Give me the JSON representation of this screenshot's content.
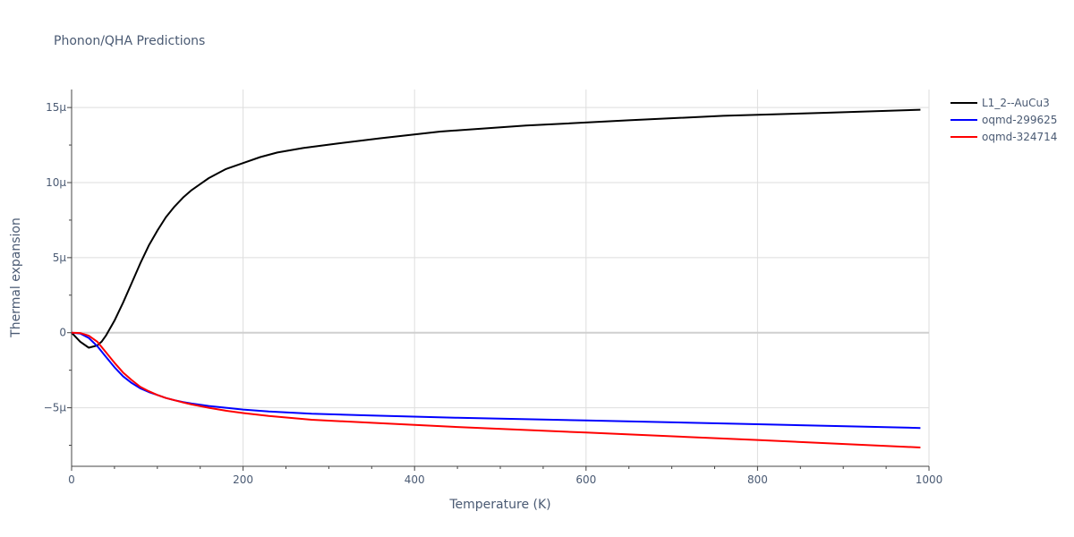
{
  "chart_data": {
    "type": "line",
    "title": "Phonon/QHA Predictions",
    "xlabel": "Temperature (K)",
    "ylabel": "Thermal expansion",
    "xlim": [
      0,
      1000
    ],
    "ylim": [
      -8.9,
      16.2
    ],
    "x_ticks": [
      0,
      200,
      400,
      600,
      800,
      1000
    ],
    "x_tick_labels": [
      "0",
      "200",
      "400",
      "600",
      "800",
      "1000"
    ],
    "y_ticks": [
      -5,
      0,
      5,
      10,
      15
    ],
    "y_tick_labels": [
      "−5µ",
      "0",
      "5µ",
      "10µ",
      "15µ"
    ],
    "grid": true,
    "legend_position": "right",
    "series": [
      {
        "name": "L1_2--AuCu3",
        "color": "#000000",
        "x": [
          0,
          10,
          20,
          30,
          35,
          40,
          50,
          60,
          70,
          80,
          90,
          100,
          110,
          120,
          130,
          140,
          150,
          160,
          170,
          180,
          200,
          220,
          240,
          270,
          310,
          360,
          430,
          530,
          650,
          760,
          880,
          990
        ],
        "y": [
          0,
          -0.6,
          -1.0,
          -0.85,
          -0.6,
          -0.2,
          0.8,
          2.0,
          3.3,
          4.6,
          5.8,
          6.8,
          7.7,
          8.4,
          9.0,
          9.5,
          9.9,
          10.3,
          10.6,
          10.9,
          11.3,
          11.7,
          12.0,
          12.3,
          12.6,
          12.95,
          13.4,
          13.8,
          14.15,
          14.45,
          14.65,
          14.85
        ]
      },
      {
        "name": "oqmd-299625",
        "color": "#0000ff",
        "x": [
          0,
          10,
          20,
          30,
          40,
          50,
          60,
          70,
          80,
          90,
          100,
          110,
          120,
          130,
          140,
          160,
          180,
          200,
          230,
          280,
          350,
          450,
          600,
          800,
          990
        ],
        "y": [
          0,
          -0.05,
          -0.35,
          -0.9,
          -1.6,
          -2.3,
          -2.9,
          -3.35,
          -3.7,
          -3.95,
          -4.15,
          -4.35,
          -4.5,
          -4.62,
          -4.72,
          -4.88,
          -5.0,
          -5.12,
          -5.25,
          -5.4,
          -5.52,
          -5.67,
          -5.85,
          -6.1,
          -6.35
        ]
      },
      {
        "name": "oqmd-324714",
        "color": "#ff0000",
        "x": [
          0,
          10,
          20,
          30,
          40,
          50,
          60,
          70,
          80,
          90,
          100,
          110,
          120,
          130,
          140,
          160,
          180,
          200,
          230,
          280,
          350,
          450,
          600,
          800,
          990
        ],
        "y": [
          0,
          -0.02,
          -0.2,
          -0.6,
          -1.3,
          -2.0,
          -2.65,
          -3.15,
          -3.6,
          -3.9,
          -4.15,
          -4.35,
          -4.5,
          -4.65,
          -4.78,
          -5.0,
          -5.2,
          -5.35,
          -5.55,
          -5.8,
          -6.0,
          -6.28,
          -6.65,
          -7.15,
          -7.65
        ]
      }
    ]
  }
}
